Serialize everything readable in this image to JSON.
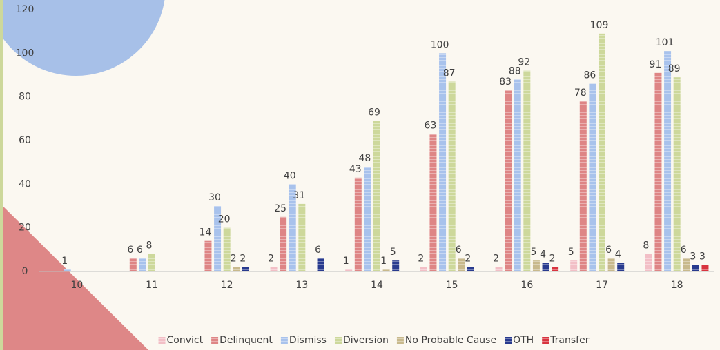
{
  "chart_data": {
    "type": "bar",
    "categories": [
      "10",
      "11",
      "12",
      "13",
      "14",
      "15",
      "16",
      "17",
      "18"
    ],
    "series": [
      {
        "name": "Convict",
        "color": "#f2bfc6",
        "values": [
          null,
          null,
          null,
          2,
          1,
          2,
          2,
          5,
          8
        ]
      },
      {
        "name": "Delinquent",
        "color": "#de8585",
        "values": [
          null,
          6,
          14,
          25,
          43,
          63,
          83,
          78,
          91
        ]
      },
      {
        "name": "Dismiss",
        "color": "#a8c2ec",
        "values": [
          1,
          6,
          30,
          40,
          48,
          100,
          88,
          86,
          101
        ]
      },
      {
        "name": "Diversion",
        "color": "#cdd89b",
        "values": [
          null,
          8,
          20,
          31,
          69,
          87,
          92,
          109,
          89
        ]
      },
      {
        "name": "No Probable Cause",
        "color": "#c8b98c",
        "values": [
          null,
          null,
          2,
          null,
          1,
          6,
          5,
          6,
          6
        ]
      },
      {
        "name": "OTH",
        "color": "#283a8e",
        "values": [
          null,
          null,
          2,
          6,
          5,
          2,
          4,
          4,
          3
        ]
      },
      {
        "name": "Transfer",
        "color": "#d8343f",
        "values": [
          null,
          null,
          null,
          null,
          null,
          null,
          2,
          null,
          3
        ]
      }
    ],
    "ylim": [
      0,
      120
    ],
    "yticks": [
      0,
      20,
      40,
      60,
      80,
      100,
      120
    ],
    "legend": "bottom"
  }
}
